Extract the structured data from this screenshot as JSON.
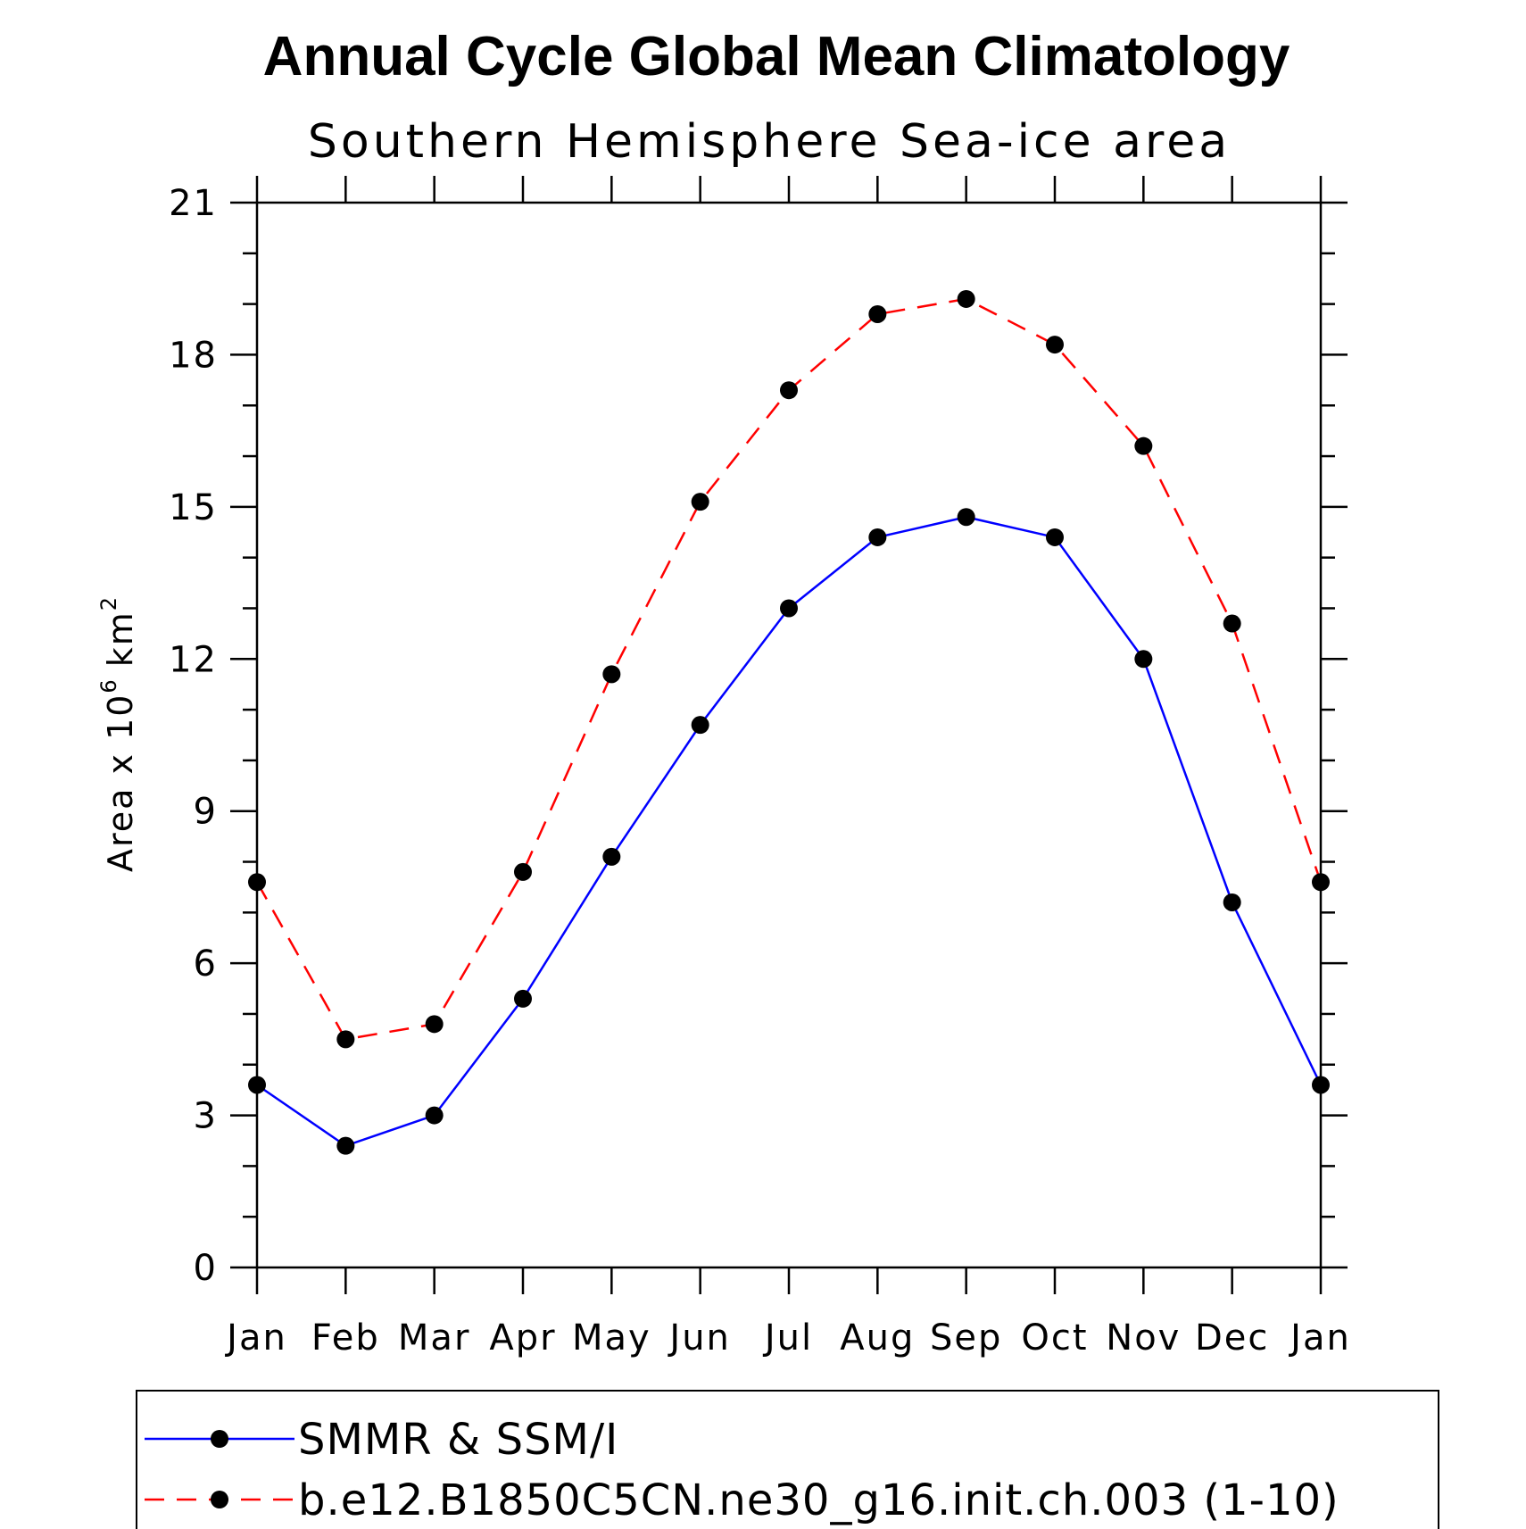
{
  "chart_data": {
    "type": "line",
    "title": "Annual Cycle Global Mean Climatology",
    "subtitle": "Southern Hemisphere Sea-ice area",
    "xlabel": "",
    "ylabel": "Area x 10",
    "ylabel_exponent": "6",
    "ylabel_unit": "km",
    "ylabel_unit_exponent": "2",
    "categories": [
      "Jan",
      "Feb",
      "Mar",
      "Apr",
      "May",
      "Jun",
      "Jul",
      "Aug",
      "Sep",
      "Oct",
      "Nov",
      "Dec",
      "Jan"
    ],
    "ylim": [
      0,
      21
    ],
    "yticks": [
      0,
      3,
      6,
      9,
      12,
      15,
      18,
      21
    ],
    "yminor_step": 1,
    "grid": false,
    "legend_position": "bottom",
    "series": [
      {
        "name": "SMMR & SSM/I",
        "color": "#0000ff",
        "line": "solid",
        "marker": "filled-circle",
        "values": [
          3.6,
          2.4,
          3.0,
          5.3,
          8.1,
          10.7,
          13.0,
          14.4,
          14.8,
          14.4,
          12.0,
          7.2,
          3.6
        ]
      },
      {
        "name": "b.e12.B1850C5CN.ne30_g16.init.ch.003 (1-10)",
        "color": "#ff0000",
        "line": "dashed",
        "marker": "filled-circle",
        "values": [
          7.6,
          4.5,
          4.8,
          7.8,
          11.7,
          15.1,
          17.3,
          18.8,
          19.1,
          18.2,
          16.2,
          12.7,
          7.6
        ]
      }
    ]
  }
}
